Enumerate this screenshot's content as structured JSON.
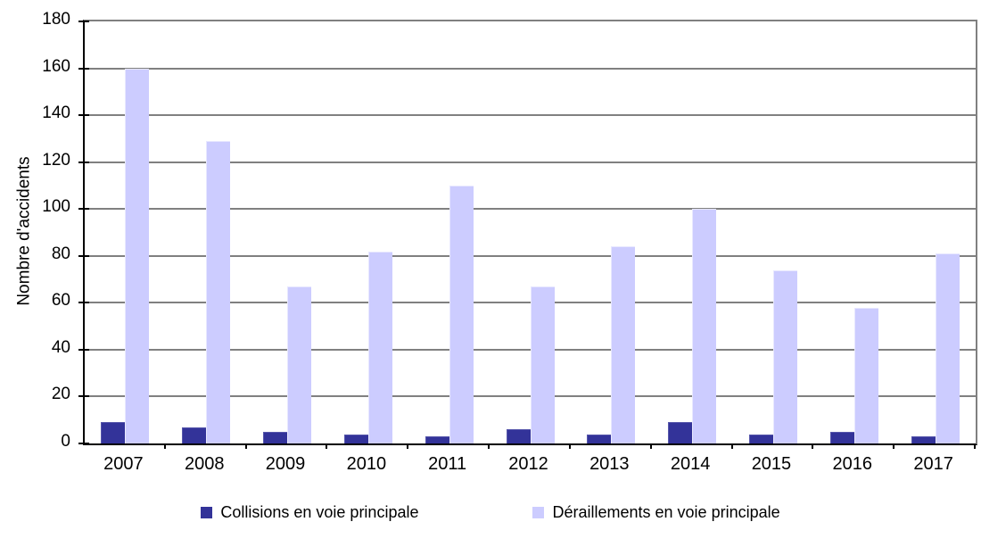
{
  "chart_data": {
    "type": "bar",
    "title": "",
    "xlabel": "",
    "ylabel": "Nombre d'accidents",
    "ylim": [
      0,
      180
    ],
    "ytick_step": 20,
    "grid": true,
    "legend_position": "bottom",
    "categories": [
      "2007",
      "2008",
      "2009",
      "2010",
      "2011",
      "2012",
      "2013",
      "2014",
      "2015",
      "2016",
      "2017"
    ],
    "series": [
      {
        "name": "Collisions en voie principale",
        "color": "#333399",
        "values": [
          9,
          7,
          5,
          4,
          3,
          6,
          4,
          9,
          4,
          5,
          3
        ]
      },
      {
        "name": "Déraillements en voie principale",
        "color": "#CCCCFF",
        "values": [
          160,
          129,
          67,
          82,
          110,
          67,
          84,
          100,
          74,
          58,
          81
        ]
      }
    ]
  },
  "colors": {
    "background": "#FFFFFF",
    "gridline": "#808080",
    "axis": "#000000",
    "text": "#000000"
  }
}
